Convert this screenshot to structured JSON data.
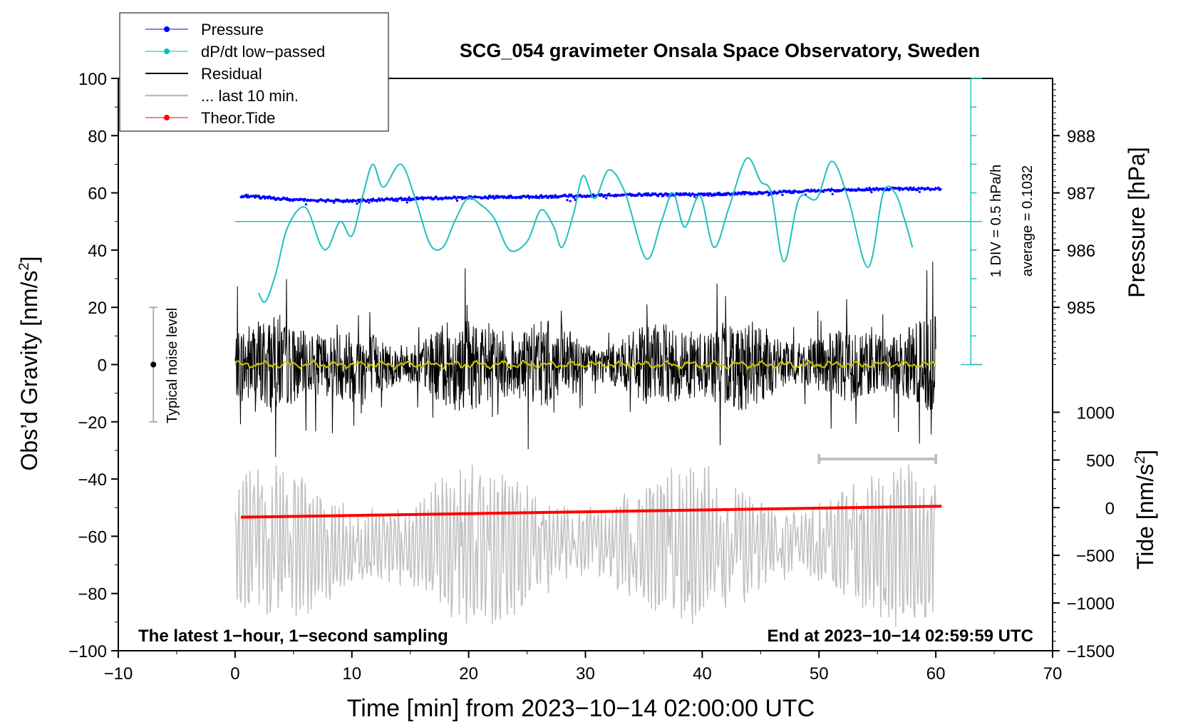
{
  "chart_data": {
    "type": "line",
    "title": "SCG_054 gravimeter Onsala Space Observatory, Sweden",
    "xlabel": "Time [min] from 2023−10−14 02:00:00 UTC",
    "ylabel_left": "Obs’d Gravity [nm/s",
    "ylabel_left_sup": "2",
    "ylabel_left_end": "]",
    "ylabel_right_pressure": "Pressure [hPa]",
    "ylabel_right_tide": "Tide [nm/s",
    "ylabel_right_tide_sup": "2",
    "ylabel_right_tide_end": "]",
    "xlim": [
      -10,
      70
    ],
    "ylim": [
      -100,
      100
    ],
    "x_ticks": [
      -10,
      0,
      10,
      20,
      30,
      40,
      50,
      60,
      70
    ],
    "x_tick_labels": [
      "−10",
      "0",
      "10",
      "20",
      "30",
      "40",
      "50",
      "60",
      "70"
    ],
    "y_ticks": [
      -100,
      -80,
      -60,
      -40,
      -20,
      0,
      20,
      40,
      60,
      80,
      100
    ],
    "y_tick_labels": [
      "−100",
      "−80",
      "−60",
      "−40",
      "−20",
      "0",
      "20",
      "40",
      "60",
      "80",
      "100"
    ],
    "pressure_axis": {
      "ticks": [
        985,
        986,
        987,
        988
      ],
      "labels": [
        "985",
        "986",
        "987",
        "988"
      ],
      "gravity_at_985": 20,
      "gravity_per_hpa": 20
    },
    "tide_axis": {
      "ticks": [
        -1500,
        -1000,
        -500,
        0,
        500,
        1000
      ],
      "labels": [
        "−1500",
        "−1000",
        "−500",
        "0",
        "500",
        "1000"
      ],
      "gravity_at_0": -50,
      "gravity_per_1000": 33.33
    },
    "dpdt_scale": {
      "label1": "1 DIV = 0.5 hPa/h",
      "label2": "average = 0.1032",
      "baseline_gravity": 50,
      "range_gravity": [
        0,
        100
      ],
      "x_min": 63
    },
    "noise_level": {
      "label": "Typical noise level",
      "x": -7,
      "center": 0,
      "range": [
        -20,
        20
      ]
    },
    "last10_bar": {
      "x_range": [
        50,
        60
      ],
      "gravity": -33
    },
    "footer_left": "The latest 1−hour, 1−second sampling",
    "footer_right": "End at 2023−10−14 02:59:59 UTC",
    "legend": [
      {
        "label": "Pressure",
        "color": "#0000ff",
        "marker": true,
        "width": 1
      },
      {
        "label": "dP/dt low−passed",
        "color": "#00c0c0",
        "marker": true,
        "width": 1
      },
      {
        "label": "Residual",
        "color": "#000000",
        "marker": false,
        "width": 2
      },
      {
        "label": "... last 10 min.",
        "color": "#c0c0c0",
        "marker": false,
        "width": 2.5
      },
      {
        "label": "Theor.Tide",
        "color": "#ff0000",
        "marker": true,
        "width": 1
      }
    ],
    "series": {
      "pressure_hpa": {
        "color": "#0000ff",
        "x": [
          0.5,
          5,
          10,
          15,
          20,
          25,
          30,
          35,
          40,
          45,
          50,
          55,
          60.5
        ],
        "values": [
          986.95,
          986.88,
          986.86,
          986.9,
          986.92,
          986.93,
          986.95,
          986.97,
          986.97,
          987.0,
          987.04,
          987.07,
          987.07
        ]
      },
      "dpdt_gravity": {
        "color": "#20c0c0",
        "x": [
          2.0,
          2.6,
          3.5,
          4.5,
          6.0,
          7.3,
          8.0,
          9.0,
          10.0,
          11.0,
          11.8,
          12.7,
          14.2,
          15.5,
          16.7,
          17.8,
          18.8,
          19.9,
          21.0,
          22.2,
          23.5,
          25.0,
          26.2,
          27.3,
          28.0,
          29.0,
          29.8,
          30.8,
          32.0,
          33.4,
          35.2,
          36.5,
          37.5,
          38.5,
          39.8,
          41.0,
          42.3,
          43.8,
          45.0,
          45.9,
          47.0,
          48.3,
          49.8,
          51.1,
          52.5,
          54.2,
          55.5,
          56.5,
          57.3,
          58.0
        ],
        "values": [
          25,
          22,
          32,
          48,
          55,
          42,
          41,
          50,
          45,
          60,
          70,
          62,
          70,
          57,
          42,
          41,
          50,
          58,
          56,
          51,
          40,
          43,
          54,
          48,
          41,
          53,
          66,
          58,
          68,
          60,
          37,
          50,
          60,
          48,
          59,
          41,
          55,
          72,
          64,
          60,
          36,
          58,
          58,
          71,
          58,
          34,
          60,
          60,
          51,
          41
        ]
      },
      "residual": {
        "color": "#000000",
        "x_range": [
          0,
          60
        ],
        "amplitude": 16
      },
      "residual_lowpass": {
        "color": "#c8c800",
        "x_range": [
          0,
          60
        ],
        "amplitude": 1.2
      },
      "last10_gravity": {
        "color": "#c0c0c0",
        "x_range": [
          0,
          60
        ],
        "offset": -63,
        "amplitude": 26
      },
      "theor_tide_nms2": {
        "color": "#ff0000",
        "x": [
          0.5,
          60.5
        ],
        "values": [
          -100,
          15
        ]
      }
    }
  }
}
